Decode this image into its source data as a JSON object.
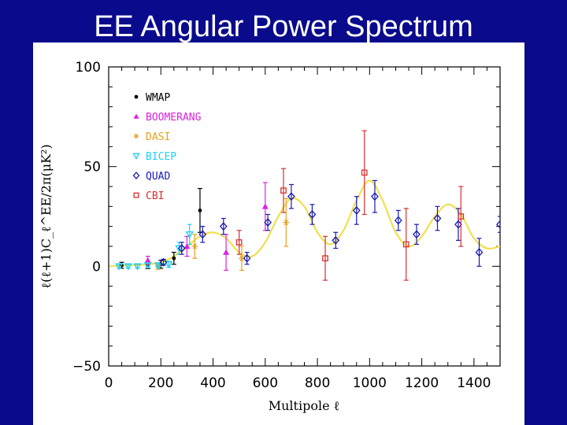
{
  "slide": {
    "title": "EE Angular Power Spectrum"
  },
  "chart_data": {
    "type": "scatter",
    "title": "EE Angular Power Spectrum",
    "xlabel": "Multipole ℓ",
    "ylabel": "ℓ(ℓ+1)C_ℓ^EE/2π(μK²)",
    "xlim": [
      0,
      1500
    ],
    "ylim": [
      -50,
      100
    ],
    "x_ticks": [
      0,
      200,
      400,
      600,
      800,
      1000,
      1200,
      1400
    ],
    "y_ticks": [
      -50,
      0,
      50,
      100
    ],
    "x_tick_labels": [
      "0",
      "200",
      "400",
      "600",
      "800",
      "1000",
      "1200",
      "1400"
    ],
    "y_tick_labels": [
      "−50",
      "0",
      "50",
      "100"
    ],
    "legend_position": "top-left",
    "colors": {
      "WMAP": "#000000",
      "BOOMERANG": "#e020e0",
      "DASI": "#e8a020",
      "BICEP": "#20d0f0",
      "QUAD": "#1a1ab8",
      "CBI": "#d83030",
      "model": "#f0e050"
    },
    "model_curve": {
      "x": [
        2,
        50,
        100,
        150,
        200,
        250,
        300,
        350,
        400,
        450,
        500,
        550,
        600,
        650,
        700,
        750,
        800,
        850,
        900,
        950,
        1000,
        1050,
        1100,
        1150,
        1200,
        1250,
        1300,
        1350,
        1400,
        1450,
        1500
      ],
      "y": [
        0,
        0.3,
        0.6,
        1,
        2,
        5,
        10,
        15,
        17,
        14,
        7,
        5,
        12,
        25,
        34,
        30,
        17,
        11,
        18,
        33,
        43,
        33,
        17,
        10,
        15,
        25,
        31,
        26,
        14,
        9,
        10
      ]
    },
    "series": [
      {
        "name": "WMAP",
        "marker": "dot",
        "points": [
          {
            "x": 50,
            "y": 0.5,
            "err": 1.5
          },
          {
            "x": 150,
            "y": 0.3,
            "err": 1.5
          },
          {
            "x": 200,
            "y": 1,
            "err": 2
          },
          {
            "x": 250,
            "y": 4,
            "err": 3
          },
          {
            "x": 350,
            "y": 28,
            "err": 11
          }
        ]
      },
      {
        "name": "BOOMERANG",
        "marker": "triangle-up",
        "points": [
          {
            "x": 150,
            "y": 3,
            "err": 2
          },
          {
            "x": 300,
            "y": 10,
            "err": 5
          },
          {
            "x": 450,
            "y": 7,
            "err": 9
          },
          {
            "x": 600,
            "y": 30,
            "err": 12
          }
        ]
      },
      {
        "name": "DASI",
        "marker": "asterisk",
        "points": [
          {
            "x": 190,
            "y": 0,
            "err": 1.5
          },
          {
            "x": 330,
            "y": 10,
            "err": 6
          },
          {
            "x": 510,
            "y": 4,
            "err": 6
          },
          {
            "x": 680,
            "y": 22,
            "err": 12
          }
        ]
      },
      {
        "name": "BICEP",
        "marker": "triangle-down",
        "points": [
          {
            "x": 40,
            "y": 0,
            "err": 1
          },
          {
            "x": 75,
            "y": 0,
            "err": 1
          },
          {
            "x": 110,
            "y": 0,
            "err": 1
          },
          {
            "x": 150,
            "y": 0.5,
            "err": 1
          },
          {
            "x": 190,
            "y": 0.5,
            "err": 1
          },
          {
            "x": 230,
            "y": 1,
            "err": 1.5
          },
          {
            "x": 270,
            "y": 9,
            "err": 3
          },
          {
            "x": 310,
            "y": 16,
            "err": 5
          }
        ]
      },
      {
        "name": "QUAD",
        "marker": "diamond-open",
        "points": [
          {
            "x": 210,
            "y": 2,
            "err": 1.5
          },
          {
            "x": 280,
            "y": 9,
            "err": 3
          },
          {
            "x": 360,
            "y": 16,
            "err": 4
          },
          {
            "x": 440,
            "y": 20,
            "err": 4
          },
          {
            "x": 530,
            "y": 4,
            "err": 3
          },
          {
            "x": 610,
            "y": 22,
            "err": 4
          },
          {
            "x": 700,
            "y": 35,
            "err": 6
          },
          {
            "x": 780,
            "y": 26,
            "err": 5
          },
          {
            "x": 870,
            "y": 13,
            "err": 4
          },
          {
            "x": 950,
            "y": 28,
            "err": 7
          },
          {
            "x": 1020,
            "y": 35,
            "err": 8
          },
          {
            "x": 1110,
            "y": 23,
            "err": 5
          },
          {
            "x": 1180,
            "y": 16,
            "err": 5
          },
          {
            "x": 1260,
            "y": 24,
            "err": 6
          },
          {
            "x": 1340,
            "y": 21,
            "err": 8
          },
          {
            "x": 1420,
            "y": 7,
            "err": 7
          },
          {
            "x": 1500,
            "y": 21,
            "err": 4
          }
        ]
      },
      {
        "name": "CBI",
        "marker": "square-open",
        "points": [
          {
            "x": 500,
            "y": 12,
            "err": 6
          },
          {
            "x": 670,
            "y": 38,
            "err": 11
          },
          {
            "x": 830,
            "y": 4,
            "err": 11
          },
          {
            "x": 980,
            "y": 47,
            "err": 21
          },
          {
            "x": 1140,
            "y": 11,
            "err": 18
          },
          {
            "x": 1350,
            "y": 25,
            "err": 15
          }
        ]
      }
    ]
  }
}
